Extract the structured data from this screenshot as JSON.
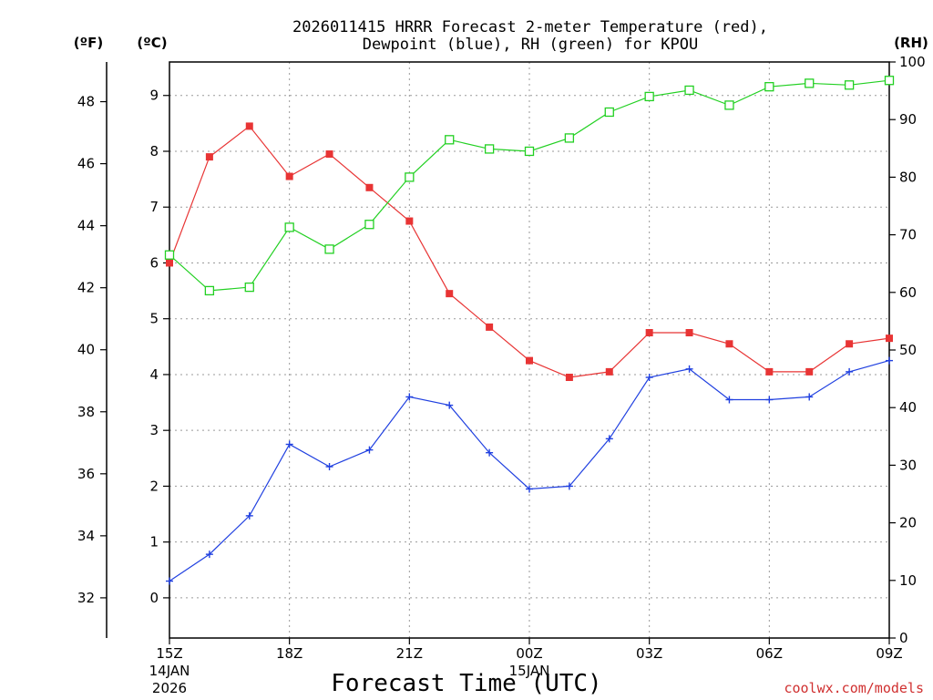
{
  "chart_data": {
    "type": "line",
    "title": [
      "2026011415 HRRR Forecast 2-meter Temperature (red),",
      "Dewpoint (blue), RH (green) for KPOU"
    ],
    "xlabel": "Forecast Time (UTC)",
    "credit": "coolwx.com/models",
    "left_outer_unit": "(ºF)",
    "left_inner_unit": "(ºC)",
    "right_unit": "(RH)",
    "x_hours": [
      0,
      1,
      2,
      3,
      4,
      5,
      6,
      7,
      8,
      9,
      10,
      11,
      12,
      13,
      14,
      15,
      16,
      17,
      18
    ],
    "x_ticks": [
      {
        "hour": 0,
        "label": "15Z",
        "sub1": "14JAN",
        "sub2": "2026"
      },
      {
        "hour": 3,
        "label": "18Z"
      },
      {
        "hour": 6,
        "label": "21Z"
      },
      {
        "hour": 9,
        "label": "00Z",
        "sub1": "15JAN"
      },
      {
        "hour": 12,
        "label": "03Z"
      },
      {
        "hour": 15,
        "label": "06Z"
      },
      {
        "hour": 18,
        "label": "09Z"
      }
    ],
    "celsius_ylim": [
      -0.72,
      9.6
    ],
    "celsius_ticks": [
      "0",
      "1",
      "2",
      "3",
      "4",
      "5",
      "6",
      "7",
      "8",
      "9"
    ],
    "fahrenheit_ticks": [
      "32",
      "34",
      "36",
      "38",
      "40",
      "42",
      "44",
      "46",
      "48"
    ],
    "rh_ylim": [
      0,
      100
    ],
    "rh_ticks": [
      "0",
      "10",
      "20",
      "30",
      "40",
      "50",
      "60",
      "70",
      "80",
      "90",
      "100"
    ],
    "series": [
      {
        "name": "Temperature",
        "unit": "C",
        "color": "#e83434",
        "values": [
          6.0,
          7.9,
          8.45,
          7.55,
          7.95,
          7.35,
          6.75,
          5.45,
          4.85,
          4.25,
          3.95,
          4.05,
          4.75,
          4.75,
          4.55,
          4.05,
          4.05,
          4.55,
          4.65
        ]
      },
      {
        "name": "Dewpoint",
        "unit": "C",
        "color": "#2040e0",
        "values": [
          0.3,
          0.78,
          1.47,
          2.75,
          2.35,
          2.65,
          3.6,
          3.45,
          2.6,
          1.95,
          2.0,
          2.85,
          3.95,
          4.1,
          3.55,
          3.55,
          3.6,
          4.05,
          4.25
        ]
      },
      {
        "name": "RH",
        "unit": "%",
        "color": "#22d022",
        "values": [
          66.5,
          60.3,
          60.9,
          71.3,
          67.5,
          71.8,
          80.0,
          86.5,
          84.9,
          84.5,
          86.8,
          91.3,
          94.0,
          95.1,
          92.5,
          95.7,
          96.3,
          96.0,
          96.8
        ]
      }
    ]
  }
}
